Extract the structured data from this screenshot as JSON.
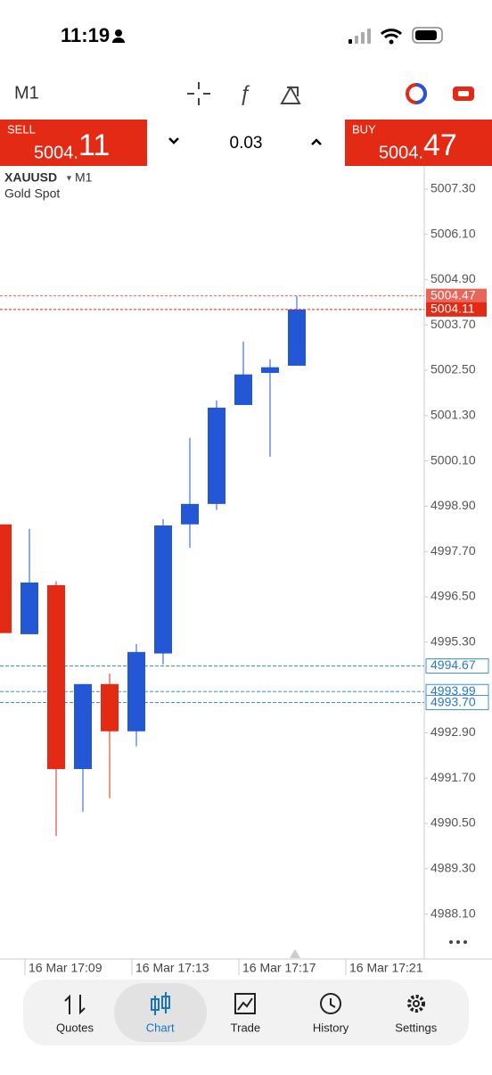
{
  "status_bar": {
    "time": "11:19"
  },
  "toolbar": {
    "timeframe": "M1"
  },
  "trade_bar": {
    "sell_label": "SELL",
    "sell_price_main": "5004.",
    "sell_price_big": "11",
    "volume": "0.03",
    "buy_label": "BUY",
    "buy_price_main": "5004.",
    "buy_price_big": "47"
  },
  "chart_data": {
    "type": "candlestick",
    "symbol": "XAUUSD",
    "timeframe": "M1",
    "description": "Gold Spot",
    "bull_color": "#2457d6",
    "bear_color": "#e22a14",
    "open": [
      4998.42,
      4995.51,
      4996.81,
      4991.94,
      4994.19,
      4992.94,
      4995.0,
      4998.42,
      4998.96,
      5001.58,
      5002.43,
      5002.62
    ],
    "high": [
      4998.42,
      4998.3,
      4996.91,
      4994.19,
      4994.47,
      4995.25,
      4998.56,
      5000.71,
      5001.7,
      5003.26,
      5002.79,
      5004.47
    ],
    "low": [
      4995.54,
      4995.51,
      4990.17,
      4990.81,
      4991.17,
      4992.54,
      4994.71,
      4997.8,
      4998.8,
      5001.58,
      5000.21,
      5002.62
    ],
    "close": [
      4995.54,
      4996.88,
      4991.94,
      4994.19,
      4992.94,
      4995.04,
      4998.39,
      4998.96,
      5001.51,
      5002.39,
      5002.58,
      5004.11
    ],
    "ylim": [
      4986.91,
      5007.91
    ],
    "yticks": [
      {
        "value": 5007.3,
        "label": "5007.30"
      },
      {
        "value": 5006.1,
        "label": "5006.10"
      },
      {
        "value": 5004.9,
        "label": "5004.90"
      },
      {
        "value": 5003.7,
        "label": "5003.70"
      },
      {
        "value": 5002.5,
        "label": "5002.50"
      },
      {
        "value": 5001.3,
        "label": "5001.30"
      },
      {
        "value": 5000.1,
        "label": "5000.10"
      },
      {
        "value": 4998.9,
        "label": "4998.90"
      },
      {
        "value": 4997.7,
        "label": "4997.70"
      },
      {
        "value": 4996.5,
        "label": "4996.50"
      },
      {
        "value": 4995.3,
        "label": "4995.30"
      },
      {
        "value": 4992.9,
        "label": "4992.90"
      },
      {
        "value": 4991.7,
        "label": "4991.70"
      },
      {
        "value": 4990.5,
        "label": "4990.50"
      },
      {
        "value": 4989.3,
        "label": "4989.30"
      },
      {
        "value": 4988.1,
        "label": "4988.10"
      }
    ],
    "price_lines": [
      {
        "value": 5004.47,
        "label": "5004.47",
        "color": "#e8655a"
      },
      {
        "value": 5004.11,
        "label": "5004.11",
        "color": "#e22a14"
      }
    ],
    "order_lines": [
      {
        "value": 4994.67,
        "label": "4994.67"
      },
      {
        "value": 4993.99,
        "label": "4993.99"
      },
      {
        "value": 4993.7,
        "label": "4993.70"
      }
    ],
    "xtick_labels": [
      "16 Mar 17:09",
      "16 Mar 17:13",
      "16 Mar 17:17",
      "16 Mar 17:21"
    ]
  },
  "nav": [
    "Quotes",
    "Chart",
    "Trade",
    "History",
    "Settings"
  ]
}
